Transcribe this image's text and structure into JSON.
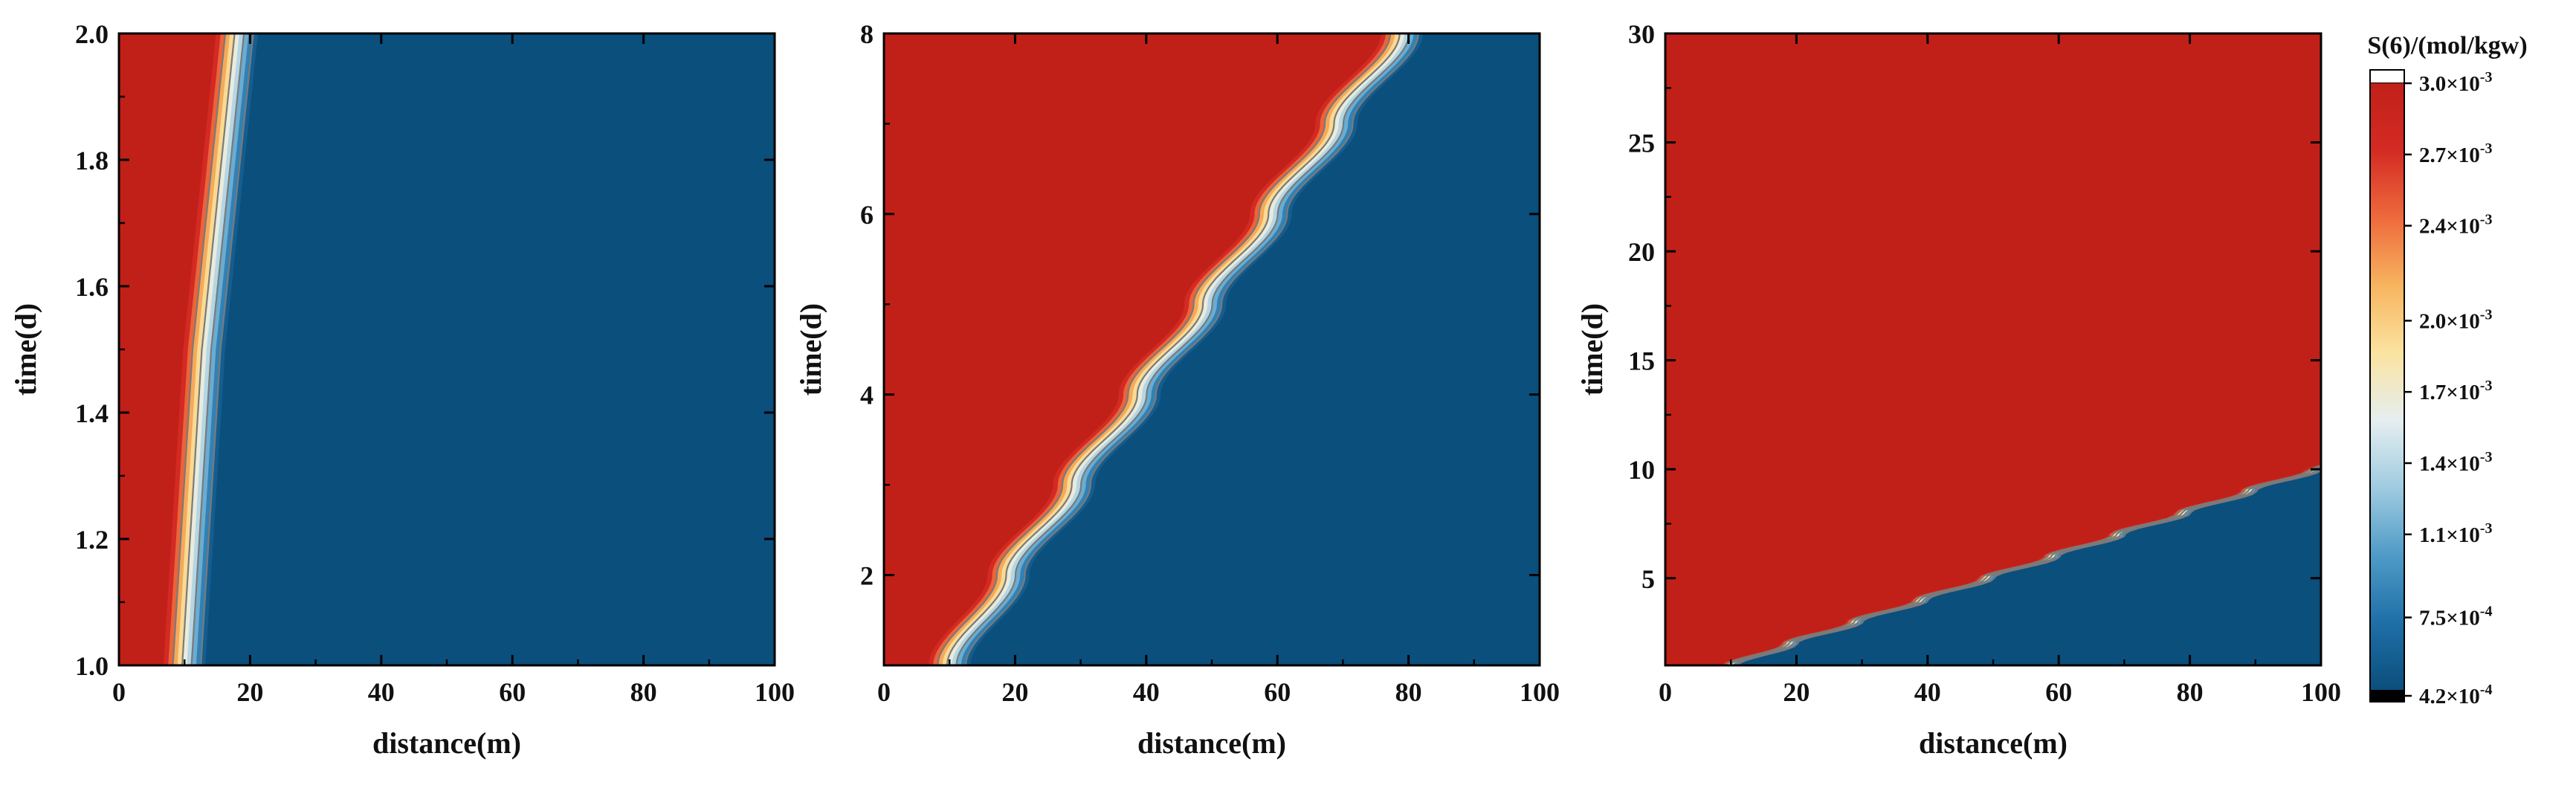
{
  "figure": {
    "colorbar_title": "S(6)/(mol/kgw)",
    "colorbar_ticks": [
      {
        "value": 0.003,
        "mantissa": "3.0",
        "exponent": "-3"
      },
      {
        "value": 0.0027,
        "mantissa": "2.7",
        "exponent": "-3"
      },
      {
        "value": 0.0024,
        "mantissa": "2.4",
        "exponent": "-3"
      },
      {
        "value": 0.002,
        "mantissa": "2.0",
        "exponent": "-3"
      },
      {
        "value": 0.0017,
        "mantissa": "1.7",
        "exponent": "-3"
      },
      {
        "value": 0.0014,
        "mantissa": "1.4",
        "exponent": "-3"
      },
      {
        "value": 0.0011,
        "mantissa": "1.1",
        "exponent": "-3"
      },
      {
        "value": 0.00075,
        "mantissa": "7.5",
        "exponent": "-4"
      },
      {
        "value": 0.00042,
        "mantissa": "4.2",
        "exponent": "-4"
      }
    ],
    "times_sign": "×10",
    "colormap": [
      "#0b4f7c",
      "#1f6fa8",
      "#4f9bc7",
      "#9fcbe0",
      "#e5eef0",
      "#fbe3a0",
      "#f7b45f",
      "#ee6a3c",
      "#d42b24",
      "#c12018"
    ],
    "over_color": "#ffffff",
    "under_color": "#000000",
    "contour_color": "#7a7a7a"
  },
  "chart_data": [
    {
      "type": "heatmap",
      "title": "",
      "xlabel": "distance(m)",
      "ylabel": "time(d)",
      "xlim": [
        0,
        100
      ],
      "ylim": [
        1.0,
        2.0
      ],
      "xticks": [
        0,
        20,
        40,
        60,
        80,
        100
      ],
      "xtick_labels": [
        "0",
        "20",
        "40",
        "60",
        "80",
        "100"
      ],
      "yticks": [
        1.0,
        1.2,
        1.4,
        1.6,
        1.8,
        2.0
      ],
      "ytick_labels": [
        "1.0",
        "1.2",
        "1.4",
        "1.6",
        "1.8",
        "2.0"
      ],
      "grid": false,
      "front_distance_vs_time": {
        "t": [
          1.0,
          1.5,
          2.0
        ],
        "x": [
          10,
          13,
          18
        ]
      },
      "high_value": 0.003,
      "low_value": 0.00062
    },
    {
      "type": "heatmap",
      "title": "",
      "xlabel": "distance(m)",
      "ylabel": "time(d)",
      "xlim": [
        0,
        100
      ],
      "ylim": [
        1,
        8
      ],
      "xticks": [
        0,
        20,
        40,
        60,
        80,
        100
      ],
      "xtick_labels": [
        "0",
        "20",
        "40",
        "60",
        "80",
        "100"
      ],
      "yticks": [
        2,
        4,
        6,
        8
      ],
      "ytick_labels": [
        "2",
        "4",
        "6",
        "8"
      ],
      "grid": false,
      "front_distance_vs_time": {
        "t": [
          1,
          2,
          3,
          4,
          5,
          6,
          7,
          8
        ],
        "x": [
          10,
          19,
          29,
          39,
          49,
          59,
          69,
          79
        ]
      },
      "high_value": 0.003,
      "low_value": 0.00062
    },
    {
      "type": "heatmap",
      "title": "",
      "xlabel": "distance(m)",
      "ylabel": "time(d)",
      "xlim": [
        0,
        100
      ],
      "ylim": [
        1,
        30
      ],
      "xticks": [
        0,
        20,
        40,
        60,
        80,
        100
      ],
      "xtick_labels": [
        "0",
        "20",
        "40",
        "60",
        "80",
        "100"
      ],
      "yticks": [
        5,
        10,
        15,
        20,
        25,
        30
      ],
      "ytick_labels": [
        "5",
        "10",
        "15",
        "20",
        "25",
        "30"
      ],
      "grid": false,
      "front_distance_vs_time": {
        "t": [
          1,
          2,
          3,
          4,
          5,
          6,
          7,
          8,
          9,
          10
        ],
        "x": [
          10,
          19,
          29,
          39,
          49,
          59,
          69,
          79,
          89,
          99
        ]
      },
      "high_value": 0.003,
      "low_value": 0.00062
    }
  ]
}
